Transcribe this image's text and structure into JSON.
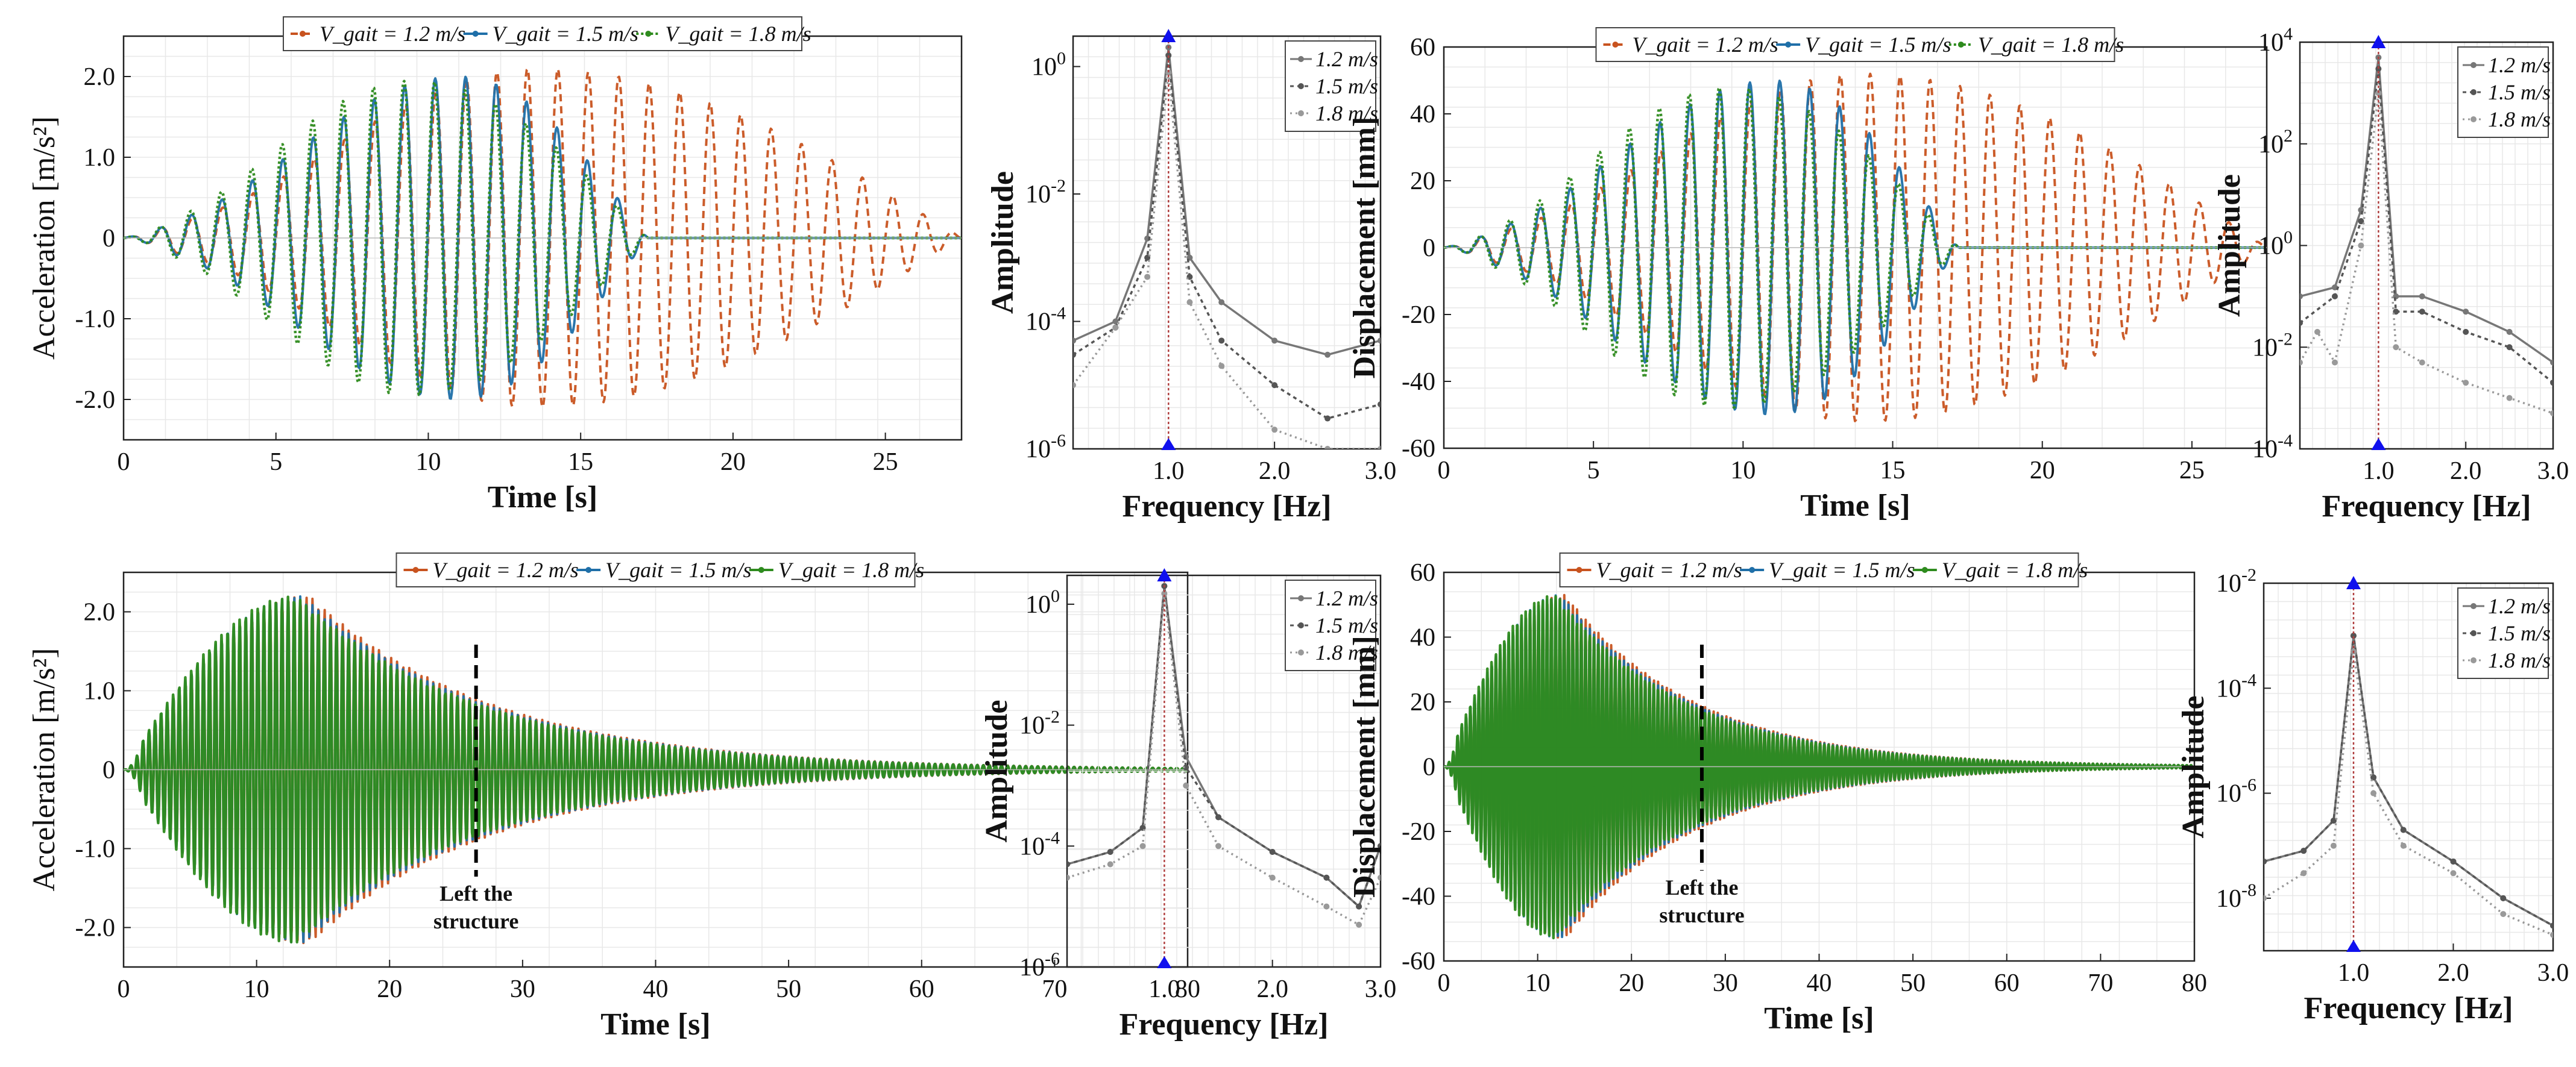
{
  "legend_text": {
    "long": [
      "V_gait = 1.2 m/s",
      "V_gait = 1.5 m/s",
      "V_gait = 1.8 m/s"
    ],
    "short": [
      "1.2 m/s",
      "1.5 m/s",
      "1.8 m/s"
    ]
  },
  "colors": {
    "v12": "#c8531f",
    "v15": "#1f6fa8",
    "v18": "#2e8b1e",
    "v18_alt": "#1e5b2a",
    "gray1": "#777777",
    "gray2": "#999999",
    "gray3": "#555555",
    "marker": "#1010ee",
    "vline": "#b04040"
  },
  "chart_data": [
    {
      "id": "acc-top",
      "type": "line",
      "xlabel": "Time [s]",
      "ylabel": "Acceleration [m/s²]",
      "xlim": [
        0,
        27.5
      ],
      "ylim": [
        -2.5,
        2.5
      ],
      "xticks": [
        0,
        5,
        10,
        15,
        20,
        25
      ],
      "yticks": [
        -2.0,
        -1.0,
        0,
        1.0,
        2.0
      ],
      "ytick_labels": [
        "-2.0",
        "-1.0",
        "0",
        "1.0",
        "2.0"
      ],
      "grid": true,
      "legend": "top",
      "series": [
        {
          "name": "V_gait = 1.2 m/s",
          "peak": 2.1,
          "t_peak": 13.5,
          "t_end": 27.5,
          "freq": 1.0
        },
        {
          "name": "V_gait = 1.5 m/s",
          "peak": 2.0,
          "t_peak": 11.0,
          "t_end": 17.2,
          "freq": 1.0
        },
        {
          "name": "V_gait = 1.8 m/s",
          "peak": 1.95,
          "t_peak": 9.5,
          "t_end": 17.2,
          "freq": 1.0
        }
      ]
    },
    {
      "id": "fft-acc-top",
      "type": "line",
      "xlabel": "Frequency [Hz]",
      "ylabel": "Amplitude",
      "xscale": "linear",
      "yscale": "log",
      "xlim": [
        0.1,
        3.0
      ],
      "ylim": [
        1e-06,
        3
      ],
      "xtick_labels": [
        "1.0",
        "2.0",
        "3.0"
      ],
      "xticks": [
        1.0,
        2.0,
        3.0
      ],
      "ytick_labels": [
        "10^0",
        "10^-2",
        "10^-4",
        "10^-6"
      ],
      "yticks": [
        1,
        0.01,
        0.0001,
        1e-06
      ],
      "peak_frequency": 1.0,
      "grid": true,
      "legend": "top-right",
      "series": [
        {
          "name": "1.2 m/s",
          "points": [
            [
              0.1,
              5e-05
            ],
            [
              0.5,
              0.0001
            ],
            [
              0.8,
              0.002
            ],
            [
              1.0,
              2.0
            ],
            [
              1.2,
              0.001
            ],
            [
              1.5,
              0.0002
            ],
            [
              2.0,
              5e-05
            ],
            [
              2.5,
              3e-05
            ],
            [
              3.0,
              5e-05
            ]
          ]
        },
        {
          "name": "1.5 m/s",
          "points": [
            [
              0.1,
              3e-05
            ],
            [
              0.5,
              8e-05
            ],
            [
              0.8,
              0.001
            ],
            [
              1.0,
              1.5
            ],
            [
              1.2,
              0.0005
            ],
            [
              1.5,
              5e-05
            ],
            [
              2.0,
              1e-05
            ],
            [
              2.5,
              3e-06
            ],
            [
              3.0,
              5e-06
            ]
          ]
        },
        {
          "name": "1.8 m/s",
          "points": [
            [
              0.1,
              1e-05
            ],
            [
              0.5,
              8e-05
            ],
            [
              0.8,
              0.0005
            ],
            [
              1.0,
              0.8
            ],
            [
              1.2,
              0.0002
            ],
            [
              1.5,
              2e-05
            ],
            [
              2.0,
              2e-06
            ],
            [
              2.5,
              1e-06
            ],
            [
              3.0,
              1e-06
            ]
          ]
        }
      ]
    },
    {
      "id": "disp-top",
      "type": "line",
      "xlabel": "Time [s]",
      "ylabel": "Displacement [mm]",
      "xlim": [
        0,
        27.5
      ],
      "ylim": [
        -60,
        60
      ],
      "xticks": [
        0,
        5,
        10,
        15,
        20,
        25
      ],
      "yticks": [
        -60,
        -40,
        -20,
        0,
        20,
        40,
        60
      ],
      "ytick_labels": [
        "-60",
        "-40",
        "-20",
        "0",
        "20",
        "40",
        "60"
      ],
      "grid": true,
      "legend": "top",
      "series": [
        {
          "name": "V_gait = 1.2 m/s",
          "peak": 52,
          "t_peak": 14.0,
          "t_end": 27.5,
          "freq": 1.0
        },
        {
          "name": "V_gait = 1.5 m/s",
          "peak": 50,
          "t_peak": 11.0,
          "t_end": 17.2,
          "freq": 1.0
        },
        {
          "name": "V_gait = 1.8 m/s",
          "peak": 48,
          "t_peak": 9.5,
          "t_end": 17.2,
          "freq": 1.0
        }
      ]
    },
    {
      "id": "fft-disp-top",
      "type": "line",
      "xlabel": "Frequency [Hz]",
      "ylabel": "Amplitude",
      "xscale": "linear",
      "yscale": "log",
      "xlim": [
        0.1,
        3.0
      ],
      "ylim": [
        0.0001,
        10000.0
      ],
      "xtick_labels": [
        "1.0",
        "2.0",
        "3.0"
      ],
      "xticks": [
        1.0,
        2.0,
        3.0
      ],
      "ytick_labels": [
        "10^4",
        "10^2",
        "10^0",
        "10^-2",
        "10^-4"
      ],
      "yticks": [
        10000,
        100,
        1,
        0.01,
        0.0001
      ],
      "peak_frequency": 1.0,
      "grid": true,
      "legend": "top-right",
      "series": [
        {
          "name": "1.2 m/s",
          "points": [
            [
              0.1,
              0.1
            ],
            [
              0.5,
              0.15
            ],
            [
              0.8,
              5
            ],
            [
              1.0,
              5000
            ],
            [
              1.2,
              0.1
            ],
            [
              1.5,
              0.1
            ],
            [
              2.0,
              0.05
            ],
            [
              2.5,
              0.02
            ],
            [
              3.0,
              0.005
            ]
          ]
        },
        {
          "name": "1.5 m/s",
          "points": [
            [
              0.1,
              0.03
            ],
            [
              0.5,
              0.1
            ],
            [
              0.8,
              3
            ],
            [
              1.0,
              3000
            ],
            [
              1.2,
              0.05
            ],
            [
              1.5,
              0.05
            ],
            [
              2.0,
              0.02
            ],
            [
              2.5,
              0.01
            ],
            [
              3.0,
              0.002
            ]
          ]
        },
        {
          "name": "1.8 m/s",
          "points": [
            [
              0.1,
              0.005
            ],
            [
              0.3,
              0.02
            ],
            [
              0.5,
              0.005
            ],
            [
              0.8,
              1
            ],
            [
              1.0,
              1000
            ],
            [
              1.2,
              0.01
            ],
            [
              1.5,
              0.005
            ],
            [
              2.0,
              0.002
            ],
            [
              2.5,
              0.001
            ],
            [
              3.0,
              0.0005
            ]
          ]
        }
      ]
    },
    {
      "id": "acc-bottom",
      "type": "line",
      "xlabel": "Time [s]",
      "ylabel": "Acceleration [m/s²]",
      "xlim": [
        0,
        80
      ],
      "ylim": [
        -2.5,
        2.5
      ],
      "xticks": [
        0,
        10,
        20,
        30,
        40,
        50,
        60,
        70,
        80
      ],
      "yticks": [
        -2.0,
        -1.0,
        0,
        1.0,
        2.0
      ],
      "ytick_labels": [
        "-2.0",
        "-1.0",
        "0",
        "1.0",
        "2.0"
      ],
      "grid": true,
      "legend": "top",
      "annotation": {
        "text_lines": [
          "Left the",
          "structure"
        ],
        "x": 26.5
      },
      "series": [
        {
          "name": "V_gait = 1.2 m/s",
          "peak": 2.2,
          "t_peak": 14.0,
          "t_leave": 26.5,
          "freq": 1.0
        },
        {
          "name": "V_gait = 1.5 m/s",
          "peak": 2.2,
          "t_peak": 13.5,
          "t_leave": 26.5,
          "freq": 1.0
        },
        {
          "name": "V_gait = 1.8 m/s",
          "peak": 2.2,
          "t_peak": 13.0,
          "t_leave": 26.5,
          "freq": 1.0
        }
      ]
    },
    {
      "id": "fft-acc-bottom",
      "type": "line",
      "xlabel": "Frequency [Hz]",
      "ylabel": "Amplitude",
      "xscale": "linear",
      "yscale": "log",
      "xlim": [
        0.1,
        3.0
      ],
      "ylim": [
        1e-06,
        3
      ],
      "xtick_labels": [
        "1.0",
        "2.0",
        "3.0"
      ],
      "xticks": [
        1.0,
        2.0,
        3.0
      ],
      "ytick_labels": [
        "10^0",
        "10^-2",
        "10^-4",
        "10^-6"
      ],
      "yticks": [
        1,
        0.01,
        0.0001,
        1e-06
      ],
      "peak_frequency": 1.0,
      "grid": true,
      "legend": "top-right",
      "series": [
        {
          "name": "1.2 m/s",
          "points": [
            [
              0.1,
              5e-05
            ],
            [
              0.5,
              8e-05
            ],
            [
              0.8,
              0.0002
            ],
            [
              1.0,
              2.0
            ],
            [
              1.2,
              0.003
            ],
            [
              1.5,
              0.0003
            ],
            [
              2.0,
              8e-05
            ],
            [
              2.5,
              3e-05
            ],
            [
              2.8,
              1e-05
            ],
            [
              3.0,
              0.0001
            ]
          ]
        },
        {
          "name": "1.5 m/s",
          "points": [
            [
              0.1,
              5e-05
            ],
            [
              0.5,
              8e-05
            ],
            [
              0.8,
              0.0002
            ],
            [
              1.0,
              2.0
            ],
            [
              1.2,
              0.002
            ],
            [
              1.5,
              0.0003
            ],
            [
              2.0,
              8e-05
            ],
            [
              2.5,
              3e-05
            ],
            [
              2.8,
              1e-05
            ],
            [
              3.0,
              0.0001
            ]
          ]
        },
        {
          "name": "1.8 m/s",
          "points": [
            [
              0.1,
              3e-05
            ],
            [
              0.5,
              5e-05
            ],
            [
              0.8,
              0.0001
            ],
            [
              1.0,
              1.5
            ],
            [
              1.2,
              0.001
            ],
            [
              1.5,
              0.0001
            ],
            [
              2.0,
              3e-05
            ],
            [
              2.5,
              1e-05
            ],
            [
              2.8,
              5e-06
            ],
            [
              3.0,
              3e-05
            ]
          ]
        }
      ]
    },
    {
      "id": "disp-bottom",
      "type": "line",
      "xlabel": "Time [s]",
      "ylabel": "Displacement [mm]",
      "xlim": [
        0,
        80
      ],
      "ylim": [
        -60,
        60
      ],
      "xticks": [
        0,
        10,
        20,
        30,
        40,
        50,
        60,
        70,
        80
      ],
      "yticks": [
        -60,
        -40,
        -20,
        0,
        20,
        40,
        60
      ],
      "ytick_labels": [
        "-60",
        "-40",
        "-20",
        "0",
        "20",
        "40",
        "60"
      ],
      "grid": true,
      "legend": "top",
      "annotation": {
        "text_lines": [
          "Left the",
          "structure"
        ],
        "x": 27.5
      },
      "series": [
        {
          "name": "V_gait = 1.2 m/s",
          "peak": 53,
          "t_peak": 13.0,
          "t_leave": 27.5,
          "freq": 1.0
        },
        {
          "name": "V_gait = 1.5 m/s",
          "peak": 53,
          "t_peak": 12.5,
          "t_leave": 27.5,
          "freq": 1.0
        },
        {
          "name": "V_gait = 1.8 m/s",
          "peak": 53,
          "t_peak": 12.0,
          "t_leave": 27.5,
          "freq": 1.0
        }
      ]
    },
    {
      "id": "fft-disp-bottom",
      "type": "line",
      "xlabel": "Frequency [Hz]",
      "ylabel": "Amplitude",
      "xscale": "linear",
      "yscale": "log",
      "xlim": [
        0.1,
        3.0
      ],
      "ylim": [
        1e-09,
        0.01
      ],
      "xtick_labels": [
        "1.0",
        "2.0",
        "3.0"
      ],
      "xticks": [
        1.0,
        2.0,
        3.0
      ],
      "ytick_labels": [
        "10^-2",
        "10^-4",
        "10^-6",
        "10^-8"
      ],
      "yticks": [
        0.01,
        0.0001,
        1e-06,
        1e-08
      ],
      "peak_frequency": 1.0,
      "grid": true,
      "legend": "top-right",
      "series": [
        {
          "name": "1.2 m/s",
          "points": [
            [
              0.1,
              5e-08
            ],
            [
              0.5,
              8e-08
            ],
            [
              0.8,
              3e-07
            ],
            [
              1.0,
              0.001
            ],
            [
              1.2,
              2e-06
            ],
            [
              1.5,
              2e-07
            ],
            [
              2.0,
              5e-08
            ],
            [
              2.5,
              1e-08
            ],
            [
              3.0,
              3e-09
            ]
          ]
        },
        {
          "name": "1.5 m/s",
          "points": [
            [
              0.1,
              5e-08
            ],
            [
              0.5,
              8e-08
            ],
            [
              0.8,
              3e-07
            ],
            [
              1.0,
              0.001
            ],
            [
              1.2,
              2e-06
            ],
            [
              1.5,
              2e-07
            ],
            [
              2.0,
              5e-08
            ],
            [
              2.5,
              1e-08
            ],
            [
              3.0,
              3e-09
            ]
          ]
        },
        {
          "name": "1.8 m/s",
          "points": [
            [
              0.1,
              1e-08
            ],
            [
              0.5,
              3e-08
            ],
            [
              0.8,
              1e-07
            ],
            [
              1.0,
              0.0005
            ],
            [
              1.2,
              1e-06
            ],
            [
              1.5,
              1e-07
            ],
            [
              2.0,
              3e-08
            ],
            [
              2.5,
              5e-09
            ],
            [
              3.0,
              2e-09
            ]
          ]
        }
      ]
    }
  ]
}
